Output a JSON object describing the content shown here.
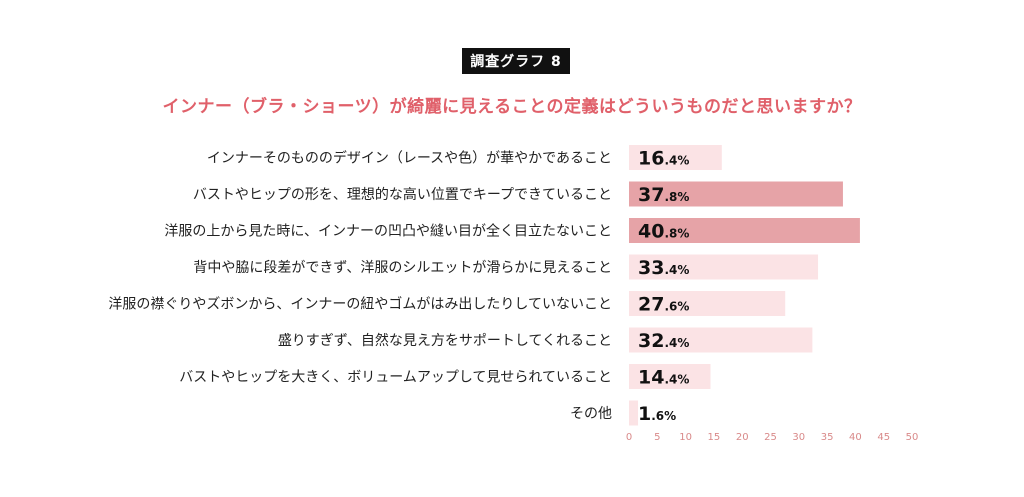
{
  "badge": "調査グラフ 8",
  "chart_data": {
    "type": "bar",
    "orientation": "horizontal",
    "title": "インナー（ブラ・ショーツ）が綺麗に見えることの定義はどういうものだと思いますか？",
    "categories": [
      "インナーそのもののデザイン（レースや色）が華やかであること",
      "バストやヒップの形を、理想的な高い位置でキープできていること",
      "洋服の上から見た時に、インナーの凹凸や縫い目が全く目立たないこと",
      "背中や脇に段差ができず、洋服のシルエットが滑らかに見えること",
      "洋服の襟ぐりやズボンから、インナーの紐やゴムがはみ出したりしていないこと",
      "盛りすぎず、自然な見え方をサポートしてくれること",
      "バストやヒップを大きく、ボリュームアップして見せられていること",
      "その他"
    ],
    "values": [
      16.4,
      37.8,
      40.8,
      33.4,
      27.6,
      32.4,
      14.4,
      1.6
    ],
    "value_labels": [
      {
        "int": "16",
        "dec": ".4%"
      },
      {
        "int": "37",
        "dec": ".8%"
      },
      {
        "int": "40",
        "dec": ".8%"
      },
      {
        "int": "33",
        "dec": ".4%"
      },
      {
        "int": "27",
        "dec": ".6%"
      },
      {
        "int": "32",
        "dec": ".4%"
      },
      {
        "int": "14",
        "dec": ".4%"
      },
      {
        "int": "1",
        "dec": ".6%"
      }
    ],
    "highlighted": [
      false,
      true,
      true,
      false,
      false,
      false,
      false,
      false
    ],
    "xlim": [
      0,
      50
    ],
    "xticks": [
      "0",
      "5",
      "10",
      "15",
      "20",
      "25",
      "30",
      "35",
      "40",
      "45",
      "50"
    ],
    "grid": false,
    "colors": {
      "bar": "#fbe3e5",
      "highlight": "#e6a3a7",
      "title": "#e0606a",
      "tick": "#d98a8a"
    }
  }
}
